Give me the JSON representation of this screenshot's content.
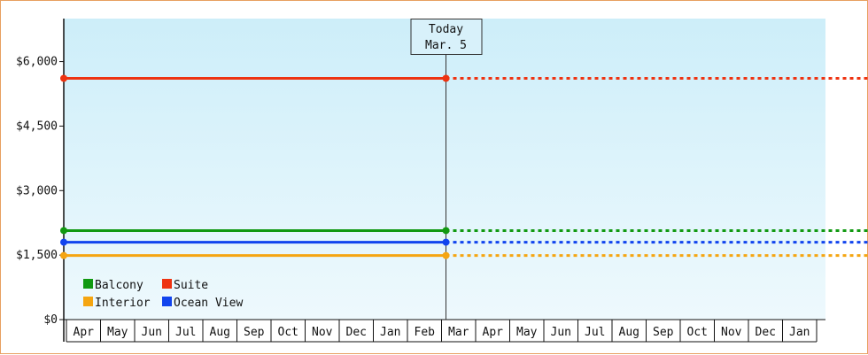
{
  "chart_data": {
    "type": "line",
    "y_unit_prefix": "$",
    "ylim": [
      0,
      7000
    ],
    "y_ticks": [
      "$0",
      "$1,500",
      "$3,000",
      "$4,500",
      "$6,000"
    ],
    "y_tick_values": [
      0,
      1500,
      3000,
      4500,
      6000
    ],
    "categories": [
      "Apr",
      "May",
      "Jun",
      "Jul",
      "Aug",
      "Sep",
      "Oct",
      "Nov",
      "Dec",
      "Jan",
      "Feb",
      "Mar",
      "Apr",
      "May",
      "Jun",
      "Jul",
      "Aug",
      "Sep",
      "Oct",
      "Nov",
      "Dec",
      "Jan"
    ],
    "today": {
      "line1": "Today",
      "line2": "Mar. 5",
      "month_offset": 11.13
    },
    "series": [
      {
        "name": "Balcony",
        "color": "#119911",
        "value": 2070,
        "style_past": "solid",
        "style_future": "dotted"
      },
      {
        "name": "Suite",
        "color": "#ee3311",
        "value": 5610,
        "style_past": "solid",
        "style_future": "dotted"
      },
      {
        "name": "Interior",
        "color": "#f5a511",
        "value": 1490,
        "style_past": "solid",
        "style_future": "dotted"
      },
      {
        "name": "Ocean View",
        "color": "#1144ee",
        "value": 1800,
        "style_past": "solid",
        "style_future": "dotted"
      }
    ],
    "legend": {
      "placement": "bottom-left",
      "order": [
        "Balcony",
        "Suite",
        "Interior",
        "Ocean View"
      ]
    },
    "background_gradient": [
      "#cdeef9",
      "#eef9fd"
    ],
    "grid": false
  }
}
